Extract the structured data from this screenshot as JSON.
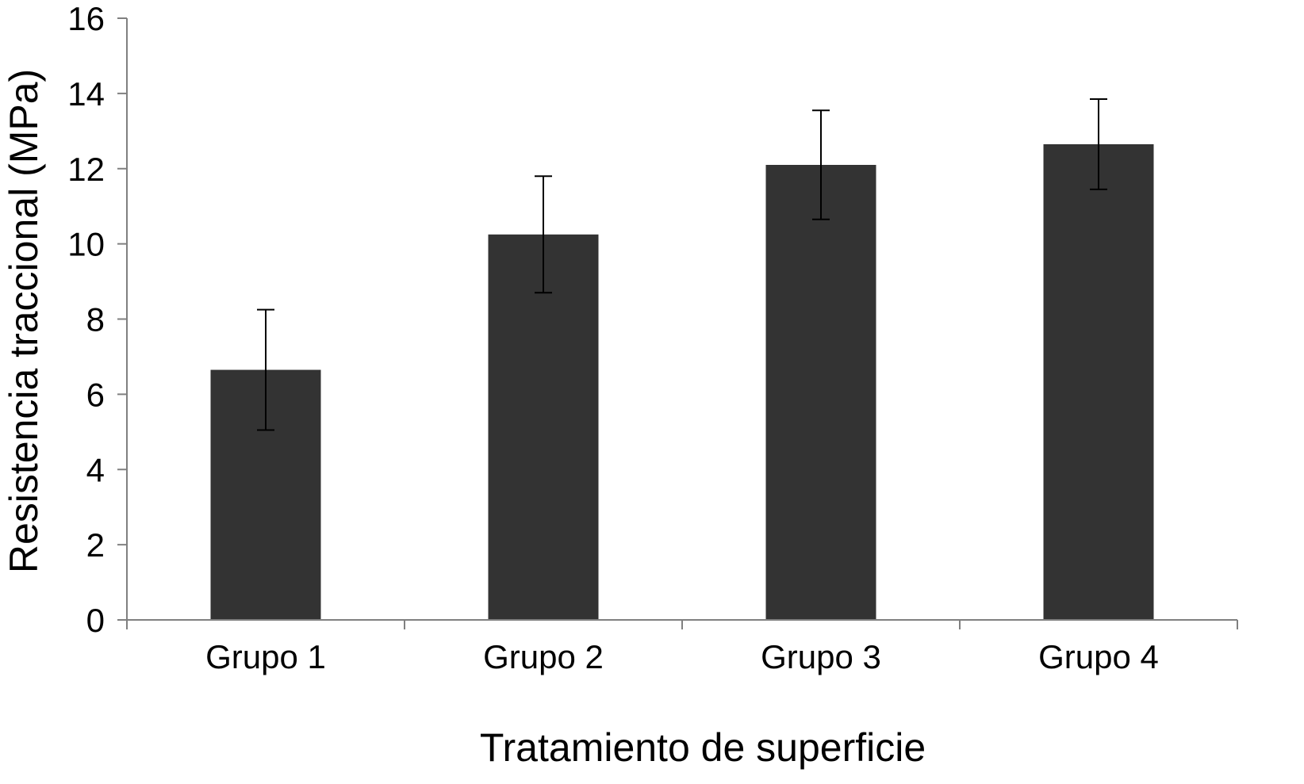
{
  "chart_data": {
    "type": "bar",
    "title": "",
    "xlabel": "Tratamiento de superficie",
    "ylabel": "Resistencia traccional (MPa)",
    "categories": [
      "Grupo 1",
      "Grupo 2",
      "Grupo 3",
      "Grupo 4"
    ],
    "values": [
      6.65,
      10.25,
      12.1,
      12.65
    ],
    "error_bars": [
      1.6,
      1.55,
      1.45,
      1.2
    ],
    "ylim": [
      0,
      16
    ],
    "yticks": [
      "0",
      "2",
      "4",
      "6",
      "8",
      "10",
      "12",
      "14",
      "16"
    ],
    "grid": false,
    "legend": "none",
    "bar_color": "#333333",
    "axis_color": "#808080"
  }
}
